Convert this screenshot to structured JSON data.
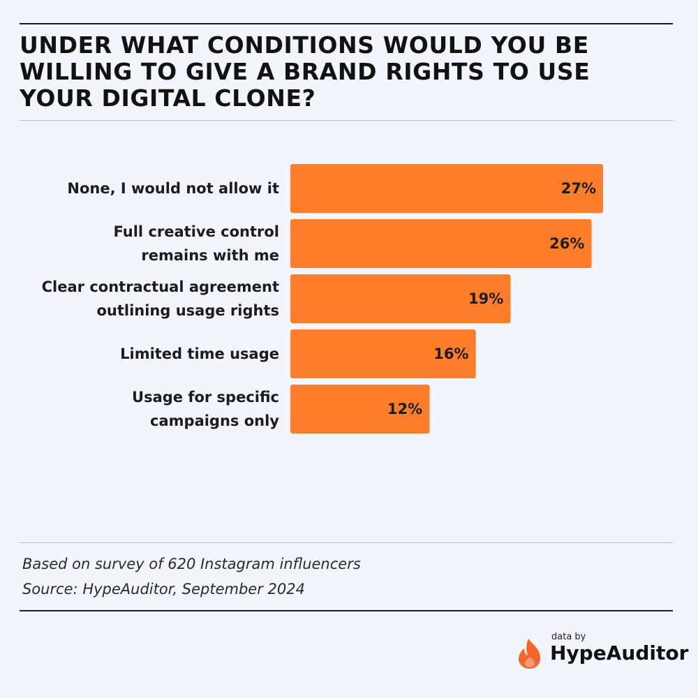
{
  "title": "UNDER WHAT CONDITIONS WOULD YOU BE WILLING TO GIVE A BRAND RIGHTS TO USE YOUR DIGITAL CLONE?",
  "chart_data": {
    "type": "bar",
    "orientation": "horizontal",
    "title": "UNDER WHAT CONDITIONS WOULD YOU BE WILLING TO GIVE A BRAND RIGHTS TO USE YOUR DIGITAL CLONE?",
    "categories": [
      [
        "None, I would not allow it"
      ],
      [
        "Full creative control",
        "remains with me"
      ],
      [
        "Clear contractual agreement",
        "outlining usage rights"
      ],
      [
        "Limited time usage"
      ],
      [
        "Usage for specific",
        "campaigns only"
      ]
    ],
    "values": [
      27,
      26,
      19,
      16,
      12
    ],
    "value_labels": [
      "27%",
      "26%",
      "19%",
      "16%",
      "12%"
    ],
    "xlim": [
      0,
      27
    ],
    "grid": false,
    "bar_color": "#fd7d2b"
  },
  "notes": {
    "line1": "Based on survey of 620 Instagram influencers",
    "line2": "Source: HypeAuditor, September 2024"
  },
  "brand": {
    "small": "data by",
    "name": "HypeAuditor",
    "icon": "flame-icon",
    "icon_color": "#f2652c"
  }
}
